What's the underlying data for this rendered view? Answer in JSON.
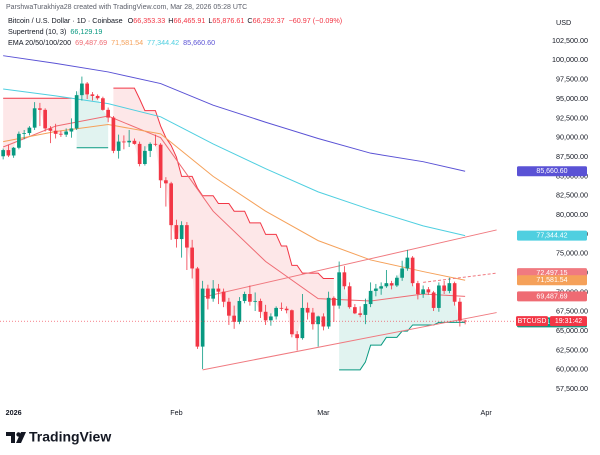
{
  "header": {
    "created": "ParshwaTurakhiya28 created with TradingView.com, Mar 28, 2026 05:28 UTC",
    "currency": "USD",
    "symbol": "Bitcoin / U.S. Dollar · 1D · Coinbase",
    "ohlc": [
      {
        "key": "O",
        "value": "66,353.33"
      },
      {
        "key": "H",
        "value": "66,465.91"
      },
      {
        "key": "L",
        "value": "65,876.61"
      },
      {
        "key": "C",
        "value": "66,292.37"
      }
    ],
    "change": "−60.97 (−0.09%)"
  },
  "footer": {
    "brand": "TradingView"
  },
  "chart_data": {
    "type": "candlestick",
    "up_color": "#089981",
    "down_color": "#f23645",
    "xlim": [
      -0.6,
      97.5
    ],
    "ylim": [
      56100,
      103920
    ],
    "xticks": [
      {
        "value": 2,
        "label": "2026"
      },
      {
        "value": 33,
        "label": "Feb"
      },
      {
        "value": 61,
        "label": "Mar"
      },
      {
        "value": 92,
        "label": "Apr"
      }
    ],
    "yticks": [
      {
        "value": 57500,
        "label": "57,500.00"
      },
      {
        "value": 60000,
        "label": "60,000.00"
      },
      {
        "value": 62500,
        "label": "62,500.00"
      },
      {
        "value": 65000,
        "label": "65,000.00"
      },
      {
        "value": 67500,
        "label": "67,500.00"
      },
      {
        "value": 70000,
        "label": "70,000.00"
      },
      {
        "value": 72500,
        "label": "72,500.00"
      },
      {
        "value": 75000,
        "label": "75,000.00"
      },
      {
        "value": 77500,
        "label": "77,500.00"
      },
      {
        "value": 80000,
        "label": "80,000.00"
      },
      {
        "value": 82500,
        "label": "82,500.00"
      },
      {
        "value": 85000,
        "label": "85,000.00"
      },
      {
        "value": 87500,
        "label": "87,500.00"
      },
      {
        "value": 90000,
        "label": "90,000.00"
      },
      {
        "value": 92500,
        "label": "92,500.00"
      },
      {
        "value": 95000,
        "label": "95,000.00"
      },
      {
        "value": 97500,
        "label": "97,500.00"
      },
      {
        "value": 100000,
        "label": "100,000.00"
      },
      {
        "value": 102500,
        "label": "102,500.00"
      }
    ],
    "open": [
      87600,
      88400,
      87700,
      88700,
      90500,
      90600,
      91300,
      93800,
      93600,
      91200,
      90900,
      90500,
      90400,
      90800,
      91200,
      95500,
      97000,
      95600,
      95400,
      95100,
      93600,
      92600,
      88300,
      89500,
      89400,
      89600,
      89200,
      86600,
      88300,
      89200,
      89100,
      84500,
      84100,
      78700,
      76900,
      78700,
      75800,
      73100,
      63000,
      70500,
      69200,
      70500,
      70100,
      68800,
      67000,
      66200,
      68900,
      69800,
      68800,
      68900,
      67500,
      66400,
      66900,
      68000,
      67900,
      67700,
      64600,
      64100,
      68000,
      67400,
      65900,
      66900,
      65600,
      69300,
      68300,
      72600,
      70800,
      68100,
      67300,
      67100,
      68500,
      70200,
      70500,
      70800,
      71200,
      70900,
      71900,
      73100,
      74500,
      71200,
      69800,
      70400,
      70000,
      68000,
      70900,
      70200,
      71200,
      68800,
      66353.33
    ],
    "high": [
      88600,
      89100,
      88800,
      90800,
      91000,
      91500,
      94600,
      94500,
      93800,
      91500,
      91800,
      90900,
      91200,
      92500,
      96000,
      97900,
      97200,
      95900,
      95600,
      95300,
      93900,
      92800,
      90400,
      90300,
      91000,
      89900,
      89500,
      88900,
      89400,
      90400,
      89300,
      84900,
      84300,
      79400,
      79200,
      79100,
      76800,
      73300,
      71500,
      71000,
      71600,
      71100,
      70500,
      69300,
      68300,
      69400,
      70100,
      70900,
      70000,
      69200,
      68400,
      67300,
      68200,
      68700,
      68200,
      67800,
      65000,
      69800,
      68700,
      68000,
      67000,
      67300,
      70100,
      69500,
      74000,
      73400,
      71300,
      68500,
      68200,
      69200,
      71300,
      71100,
      71300,
      72900,
      71500,
      72200,
      74100,
      75500,
      74700,
      71500,
      70900,
      70700,
      70200,
      71300,
      71500,
      71900,
      71400,
      69300,
      66465.91
    ],
    "low": [
      87200,
      87500,
      87400,
      88500,
      89800,
      90300,
      91000,
      91500,
      90800,
      89300,
      89900,
      90100,
      90100,
      90000,
      91000,
      94800,
      95000,
      94800,
      94900,
      93500,
      92000,
      88000,
      87300,
      88500,
      88800,
      89100,
      86300,
      86400,
      87500,
      88900,
      83500,
      81100,
      76800,
      75800,
      74500,
      72900,
      71800,
      62700,
      60100,
      67800,
      68800,
      68500,
      68100,
      65800,
      65300,
      65900,
      68600,
      68300,
      67600,
      66700,
      65800,
      65700,
      66500,
      67600,
      67300,
      64200,
      62500,
      63900,
      66500,
      65200,
      63000,
      65100,
      65300,
      66200,
      67900,
      70400,
      67900,
      67200,
      66800,
      65900,
      68100,
      69500,
      69700,
      70600,
      70400,
      70700,
      71500,
      72800,
      70800,
      69100,
      69300,
      69700,
      67600,
      67500,
      69800,
      69900,
      68300,
      65600,
      65876.61
    ],
    "close": [
      88400,
      87700,
      88700,
      90500,
      90600,
      91300,
      93800,
      93600,
      91200,
      90900,
      90500,
      90400,
      90800,
      91200,
      95500,
      97000,
      95600,
      95400,
      95100,
      93600,
      92600,
      88300,
      89500,
      89400,
      89600,
      89200,
      86600,
      88300,
      89200,
      89100,
      84500,
      84100,
      78700,
      76900,
      78700,
      75800,
      73100,
      63000,
      70500,
      69200,
      70500,
      70100,
      68800,
      67000,
      66200,
      68900,
      69800,
      68800,
      68900,
      67500,
      66400,
      66900,
      68000,
      67900,
      67700,
      64600,
      64100,
      68000,
      67400,
      65900,
      66900,
      65600,
      69300,
      68300,
      72600,
      70800,
      68100,
      67300,
      67100,
      68500,
      70200,
      70500,
      70800,
      71200,
      70900,
      71900,
      73100,
      74500,
      71200,
      69800,
      70400,
      70000,
      68000,
      70900,
      70200,
      71200,
      68800,
      66353.33,
      66292.37
    ],
    "supertrend": {
      "label": "Supertrend (10, 3)",
      "value_label": "66,129.19",
      "up_color": "#089981",
      "down_color": "#f23645",
      "down": [
        95100,
        95100,
        95100,
        95100,
        95100,
        95100,
        95100,
        95100,
        95100,
        95100,
        95100,
        95100,
        95100,
        95100,
        null,
        null,
        null,
        null,
        null,
        null,
        null,
        96400,
        96400,
        96400,
        96400,
        96400,
        95000,
        93500,
        93500,
        93500,
        91500,
        90000,
        89000,
        87500,
        85000,
        85000,
        85000,
        83500,
        82500,
        82500,
        82500,
        81500,
        81500,
        81500,
        80500,
        80500,
        80500,
        79000,
        79000,
        79000,
        77500,
        77500,
        77500,
        76000,
        76000,
        73500,
        73500,
        72500,
        72500,
        72500,
        72500,
        71800,
        71800,
        71800,
        null,
        null,
        null,
        null,
        null,
        null,
        null,
        null,
        null,
        null,
        null,
        null,
        null,
        null,
        null,
        null,
        null,
        null,
        null,
        null,
        null,
        null,
        null,
        null,
        null
      ],
      "up": [
        null,
        null,
        null,
        null,
        null,
        null,
        null,
        null,
        null,
        null,
        null,
        null,
        null,
        null,
        88700,
        88700,
        88700,
        88700,
        88700,
        88700,
        88700,
        null,
        null,
        null,
        null,
        null,
        null,
        null,
        null,
        null,
        null,
        null,
        null,
        null,
        null,
        null,
        null,
        null,
        null,
        null,
        null,
        null,
        null,
        null,
        null,
        null,
        null,
        null,
        null,
        null,
        null,
        null,
        null,
        null,
        null,
        null,
        null,
        null,
        null,
        null,
        null,
        null,
        null,
        null,
        60000,
        60000,
        60000,
        60000,
        60000,
        61000,
        63200,
        63200,
        63200,
        64200,
        64200,
        64200,
        65000,
        65000,
        65800,
        65800,
        65800,
        65800,
        65800,
        66129.19,
        66129.19,
        66129.19,
        66129.19,
        66129.19,
        66129.19
      ]
    },
    "ema": {
      "label": "EMA 20/50/100/200",
      "series": [
        {
          "color": "#ef6b73",
          "x": [
            0,
            10,
            20,
            30,
            40,
            50,
            60,
            70,
            80,
            88
          ],
          "values": [
            88800,
            91500,
            92800,
            90000,
            80500,
            74000,
            69200,
            68900,
            69800,
            69487.69
          ],
          "value_label": "69,487.69"
        },
        {
          "color": "#f5a15a",
          "x": [
            0,
            10,
            20,
            30,
            40,
            50,
            60,
            70,
            80,
            88
          ],
          "values": [
            89500,
            90800,
            91700,
            90500,
            85000,
            80500,
            76700,
            74200,
            72700,
            71581.54
          ],
          "value_label": "71,581.54"
        },
        {
          "color": "#4fcfe0",
          "x": [
            0,
            10,
            20,
            30,
            40,
            50,
            60,
            70,
            80,
            88
          ],
          "values": [
            96300,
            95400,
            94400,
            92700,
            89200,
            86000,
            83000,
            80700,
            78600,
            77344.42
          ],
          "value_label": "77,344.42"
        },
        {
          "color": "#5a52d5",
          "x": [
            0,
            10,
            20,
            30,
            40,
            50,
            60,
            70,
            80,
            88
          ],
          "values": [
            100600,
            99600,
            98500,
            97000,
            94200,
            92000,
            89900,
            88000,
            86900,
            85660.6
          ],
          "value_label": "85,660.60"
        }
      ]
    },
    "trendlines": {
      "color": "#f07a80",
      "lines": [
        {
          "x": [
            38,
            94
          ],
          "values": [
            60000,
            67400
          ]
        },
        {
          "x": [
            38,
            94
          ],
          "values": [
            69400,
            78080
          ]
        },
        {
          "x": [
            80,
            94
          ],
          "values": [
            71300,
            72497.15
          ],
          "dashed": true,
          "value_label": "72,497.15"
        }
      ]
    },
    "last_price": {
      "symbol": "BTCUSD",
      "countdown": "19:31:42"
    }
  }
}
